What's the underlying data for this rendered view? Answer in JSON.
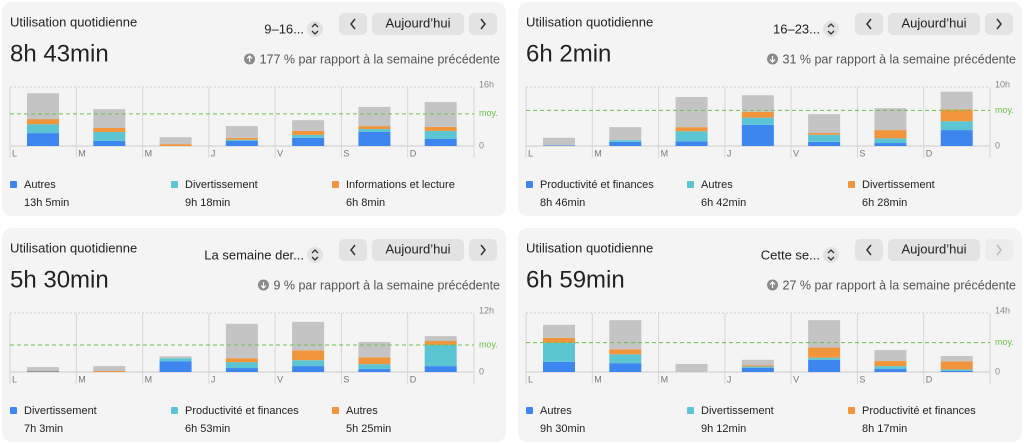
{
  "panels": [
    {
      "title": "Utilisation quotidienne",
      "period": "9–16...",
      "today_button": "Aujourd’hui",
      "total": "8h 43min",
      "trend": "up",
      "comparison": "177 % par rapport à la semaine précédente",
      "chart": {
        "type": "bar",
        "stacked": true,
        "categories": [
          "L",
          "M",
          "M",
          "J",
          "V",
          "S",
          "D"
        ],
        "ylim": [
          0,
          16
        ],
        "yticks": [
          0,
          {
            "value": 16,
            "label": "16h"
          }
        ],
        "average": 8.72,
        "average_label": "moy.",
        "series": [
          {
            "name": "Autres",
            "total": "13h 5min",
            "color": "#3d86f0",
            "values": [
              3.5,
              1.4,
              0,
              1.4,
              2.2,
              3.8,
              1.9
            ]
          },
          {
            "name": "Divertissement",
            "total": "9h 18min",
            "color": "#5cc5d3",
            "values": [
              2.4,
              2.4,
              0,
              0.3,
              0.8,
              0.8,
              2.2
            ]
          },
          {
            "name": "Informations et lecture",
            "total": "6h 8min",
            "color": "#f0953c",
            "values": [
              1.4,
              1.1,
              0.5,
              0.5,
              1.1,
              0.8,
              1.1
            ]
          },
          {
            "color": "#c4c4c4",
            "values": [
              7.0,
              5.1,
              1.9,
              3.2,
              2.9,
              5.2,
              6.7
            ]
          }
        ]
      }
    },
    {
      "title": "Utilisation quotidienne",
      "period": "16–23...",
      "today_button": "Aujourd’hui",
      "total": "6h 2min",
      "trend": "down",
      "comparison": "31 % par rapport à la semaine précédente",
      "chart": {
        "type": "bar",
        "stacked": true,
        "categories": [
          "L",
          "M",
          "M",
          "J",
          "V",
          "S",
          "D"
        ],
        "ylim": [
          0,
          10
        ],
        "yticks": [
          0,
          {
            "value": 10,
            "label": "10h"
          }
        ],
        "average": 6.03,
        "average_label": "moy.",
        "series": [
          {
            "name": "Productivité et finances",
            "total": "8h 46min",
            "color": "#3d86f0",
            "values": [
              0.1,
              0.7,
              0.8,
              3.6,
              0.7,
              0.5,
              2.7
            ]
          },
          {
            "name": "Autres",
            "total": "6h 42min",
            "color": "#5cc5d3",
            "values": [
              0,
              0.3,
              1.7,
              1.2,
              1.2,
              0.8,
              1.5
            ]
          },
          {
            "name": "Divertissement",
            "total": "6h 28min",
            "color": "#f0953c",
            "values": [
              0,
              0,
              0.7,
              1.0,
              0.3,
              1.4,
              2.0
            ]
          },
          {
            "color": "#c4c4c4",
            "values": [
              1.3,
              2.2,
              5.1,
              2.8,
              3.2,
              3.7,
              3.0
            ]
          }
        ]
      }
    },
    {
      "title": "Utilisation quotidienne",
      "period": "La semaine der...",
      "today_button": "Aujourd’hui",
      "total": "5h 30min",
      "trend": "down",
      "comparison": "9 % par rapport à la semaine précédente",
      "chart": {
        "type": "bar",
        "stacked": true,
        "categories": [
          "L",
          "M",
          "M",
          "J",
          "V",
          "S",
          "D"
        ],
        "ylim": [
          0,
          12
        ],
        "yticks": [
          0,
          {
            "value": 12,
            "label": "12h"
          }
        ],
        "average": 5.5,
        "average_label": "moy.",
        "series": [
          {
            "name": "Divertissement",
            "total": "7h 3min",
            "color": "#3d86f0",
            "values": [
              0.1,
              0,
              2.2,
              0.8,
              1.2,
              0.6,
              1.2
            ]
          },
          {
            "name": "Productivité et finances",
            "total": "6h 53min",
            "color": "#5cc5d3",
            "values": [
              0,
              0,
              0.6,
              1.2,
              1.2,
              1.0,
              4.3
            ]
          },
          {
            "name": "Autres",
            "total": "5h 25min",
            "color": "#f0953c",
            "values": [
              0.1,
              0.2,
              0,
              0.8,
              2.0,
              1.4,
              0.8
            ]
          },
          {
            "color": "#c4c4c4",
            "values": [
              0.8,
              1.0,
              0.4,
              7.0,
              5.8,
              3.1,
              1.0
            ]
          }
        ]
      }
    },
    {
      "title": "Utilisation quotidienne",
      "period": "Cette se...",
      "today_button": "Aujourd’hui",
      "total": "6h 59min",
      "trend": "up",
      "comparison": "27 % par rapport à la semaine précédente",
      "next_disabled": true,
      "chart": {
        "type": "bar",
        "stacked": true,
        "categories": [
          "L",
          "M",
          "M",
          "J",
          "V",
          "S",
          "D"
        ],
        "ylim": [
          0,
          14
        ],
        "yticks": [
          0,
          {
            "value": 14,
            "label": "14h"
          }
        ],
        "average": 6.98,
        "average_label": "moy.",
        "series": [
          {
            "name": "Autres",
            "total": "9h 30min",
            "color": "#3d86f0",
            "values": [
              2.4,
              2.1,
              0,
              1.0,
              2.9,
              0.7,
              0.3
            ]
          },
          {
            "name": "Divertissement",
            "total": "9h 12min",
            "color": "#5cc5d3",
            "values": [
              4.5,
              2.1,
              0,
              0.3,
              0.5,
              0.7,
              0.3
            ]
          },
          {
            "name": "Productivité et finances",
            "total": "8h 17min",
            "color": "#f0953c",
            "values": [
              1.2,
              1.2,
              0,
              0.3,
              2.4,
              1.2,
              1.9
            ]
          },
          {
            "color": "#c4c4c4",
            "values": [
              3.1,
              6.9,
              1.9,
              1.3,
              6.5,
              2.6,
              1.3
            ]
          }
        ]
      }
    }
  ]
}
